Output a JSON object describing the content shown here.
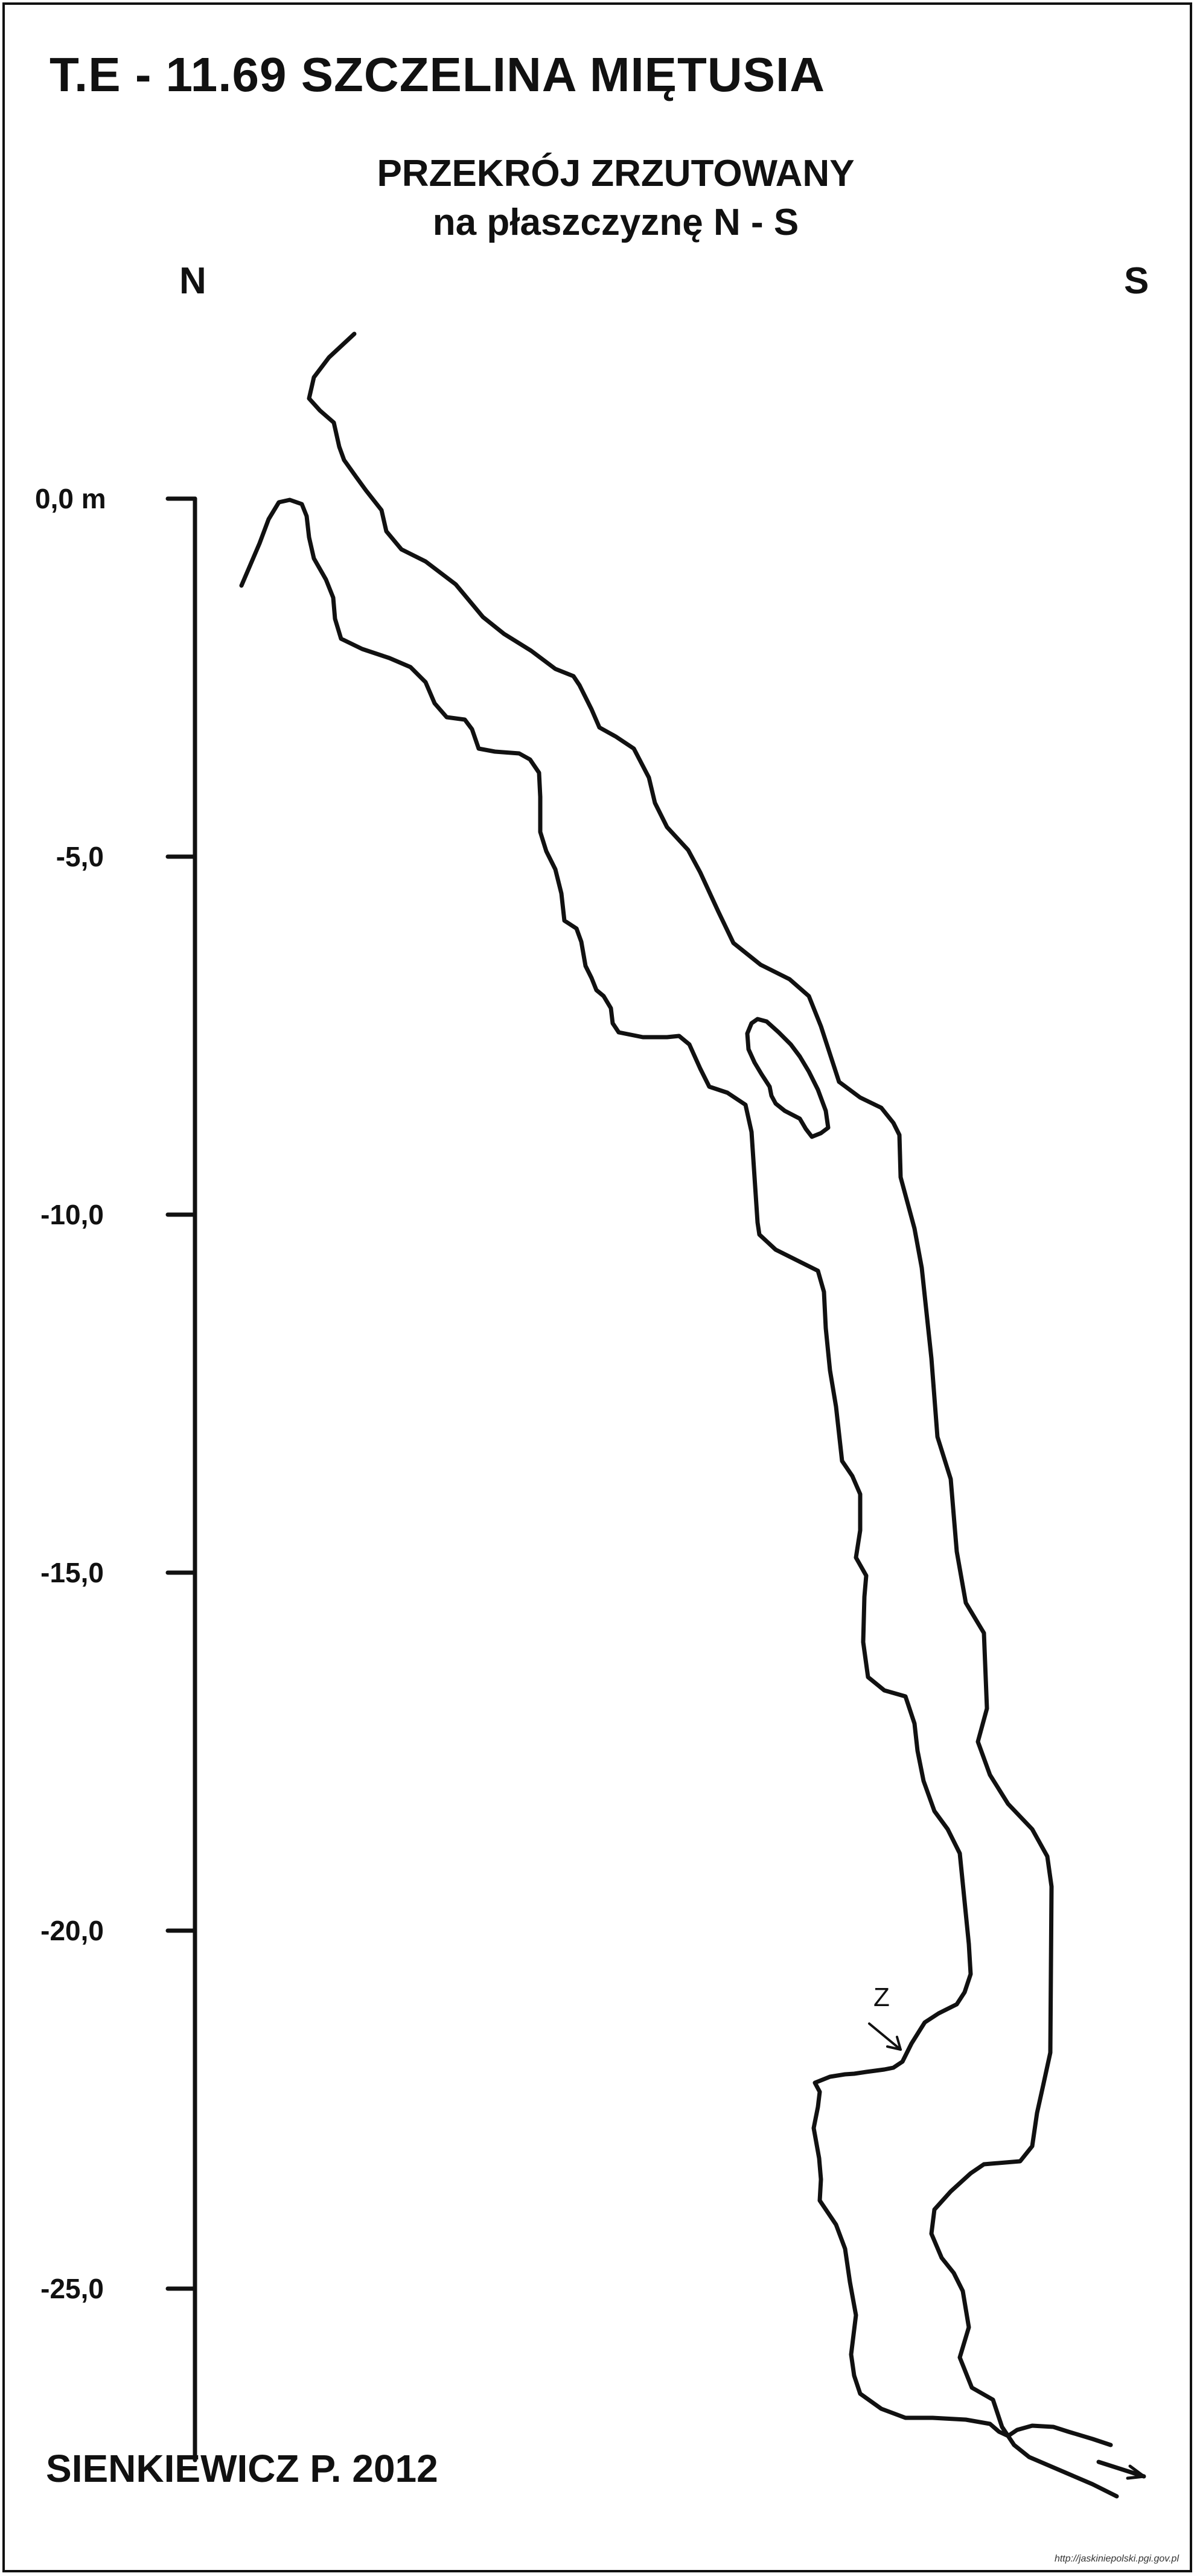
{
  "title": "T.E - 11.69 SZCZELINA MIĘTUSIA",
  "subtitle_line1": "PRZEKRÓJ ZRZUTOWANY",
  "subtitle_line2": "na płaszczyznę N - S",
  "direction_left": "N",
  "direction_right": "S",
  "depth_scale": {
    "ticks": [
      {
        "value": 0,
        "label": "0,0 m"
      },
      {
        "value": -5,
        "label": "-5,0"
      },
      {
        "value": -10,
        "label": "-10,0"
      },
      {
        "value": -15,
        "label": "-15,0"
      },
      {
        "value": -20,
        "label": "-20,0"
      },
      {
        "value": -25,
        "label": "-25,0"
      }
    ]
  },
  "marker_label": "Z",
  "author": "SIENKIEWICZ P. 2012",
  "credit": "http://jaskiniepolski.pgi.gov.pl",
  "colors": {
    "ink": "#111111",
    "background": "#ffffff"
  }
}
